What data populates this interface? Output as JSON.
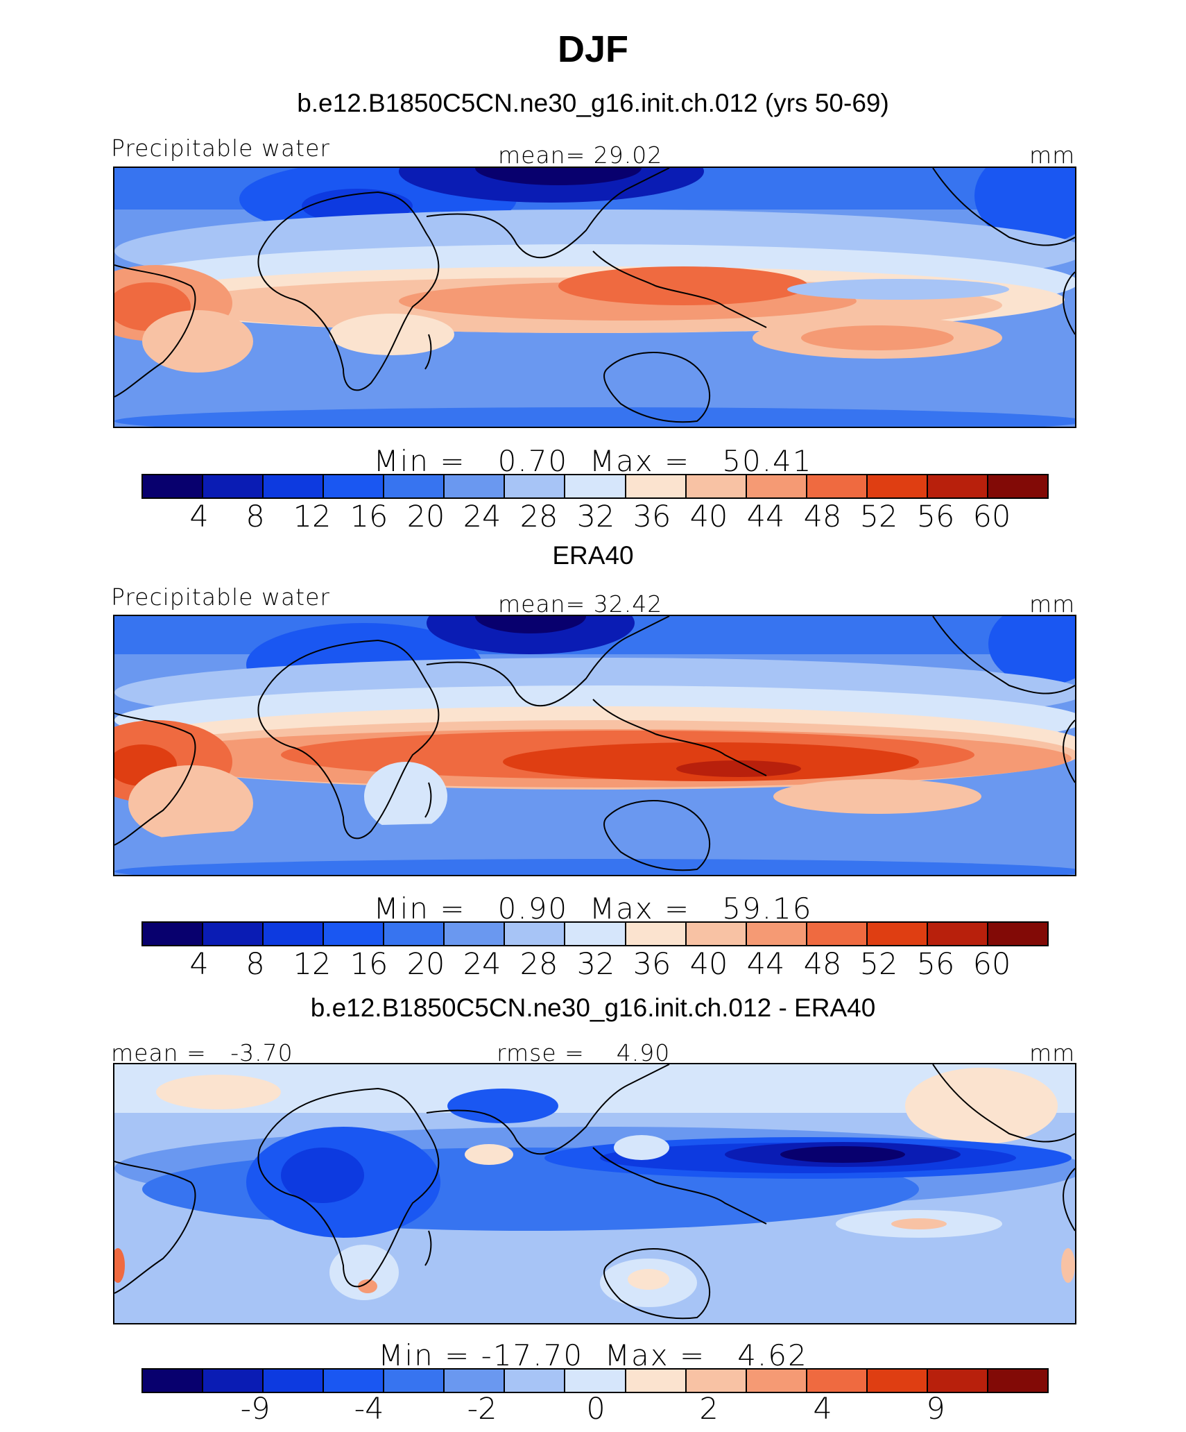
{
  "title": "DJF",
  "colormap": [
    "#08006e",
    "#0a1cb4",
    "#0d3ae0",
    "#1a57f2",
    "#3774f0",
    "#6a98f0",
    "#a7c4f6",
    "#d6e6fb",
    "#fbe3cf",
    "#f8c2a4",
    "#f59a74",
    "#ef6a40",
    "#df3e12",
    "#b8200c",
    "#820a06"
  ],
  "panels": [
    {
      "title": "b.e12.B1850C5CN.ne30_g16.init.ch.012 (yrs 50-69)",
      "left_label": "Precipitable water",
      "center_label": "mean=   29.02",
      "units": "mm",
      "minmax": "Min =   0.70  Max =   50.41",
      "colorbar_ticks": [
        "4",
        "8",
        "12",
        "16",
        "20",
        "24",
        "28",
        "32",
        "36",
        "40",
        "44",
        "48",
        "52",
        "56",
        "60"
      ]
    },
    {
      "title": "ERA40",
      "left_label": "Precipitable water",
      "center_label": "mean=   32.42",
      "units": "mm",
      "minmax": "Min =   0.90  Max =   59.16",
      "colorbar_ticks": [
        "4",
        "8",
        "12",
        "16",
        "20",
        "24",
        "28",
        "32",
        "36",
        "40",
        "44",
        "48",
        "52",
        "56",
        "60"
      ]
    },
    {
      "title": "b.e12.B1850C5CN.ne30_g16.init.ch.012 - ERA40",
      "left_label": "mean =   -3.70",
      "center_label": "rmse =    4.90",
      "units": "mm",
      "minmax": "Min = -17.70  Max =   4.62",
      "colorbar_ticks": [
        "-9",
        "-4",
        "-2",
        "0",
        "2",
        "4",
        "9"
      ]
    }
  ]
}
